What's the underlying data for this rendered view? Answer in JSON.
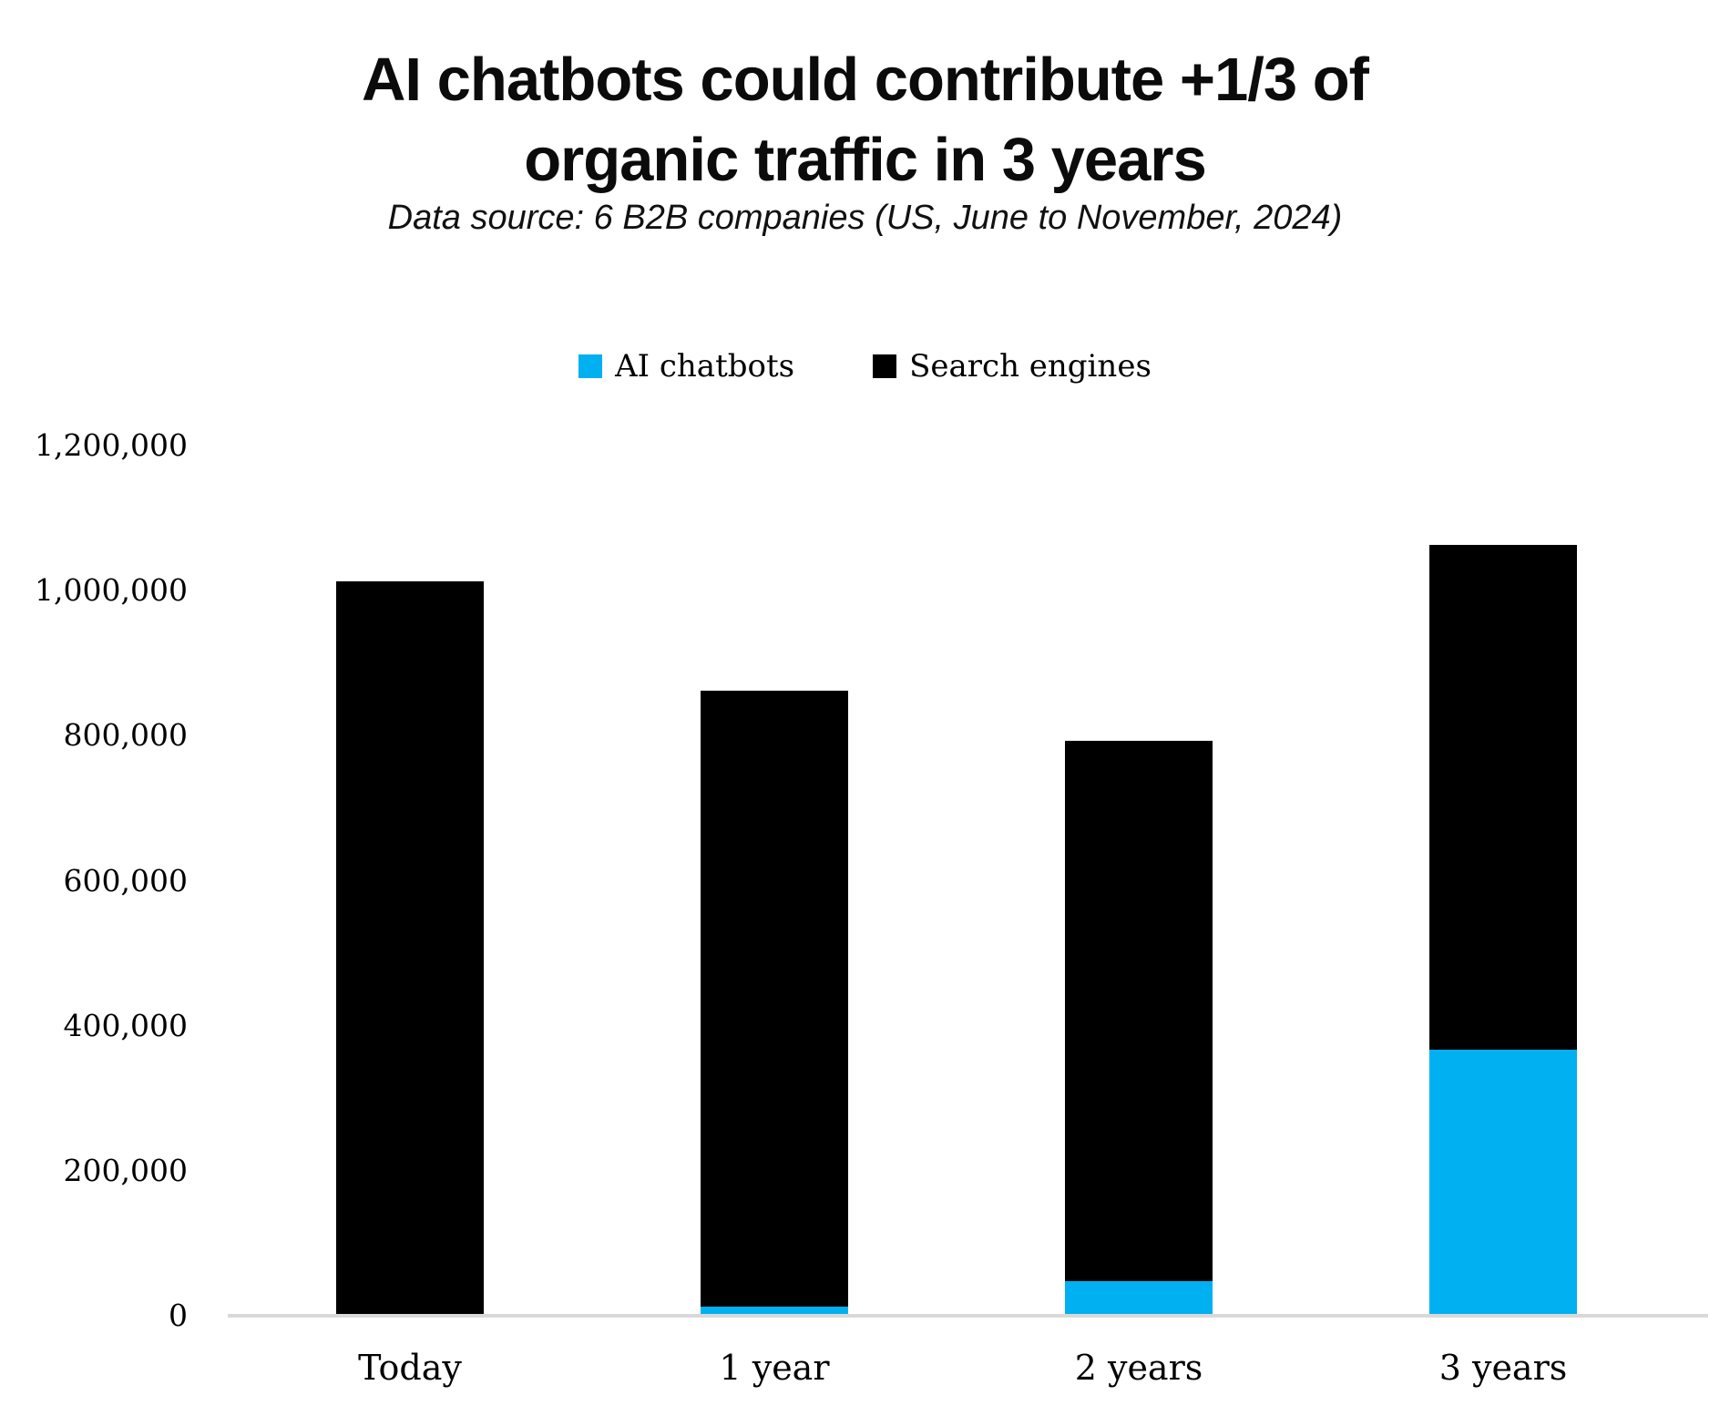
{
  "title": {
    "line1": "AI chatbots could contribute +1/3 of",
    "line2": "organic traffic in 3 years"
  },
  "subtitle": "Data source: 6 B2B companies (US, June to November, 2024)",
  "legend": {
    "items": [
      {
        "label": "AI chatbots",
        "color": "#00B0F0"
      },
      {
        "label": "Search engines",
        "color": "#000000"
      }
    ]
  },
  "colors": {
    "ai_chatbots": "#00B0F0",
    "search_engines": "#000000",
    "axis_line": "#D9D9D9",
    "text": "#000000"
  },
  "chart_data": {
    "type": "bar",
    "stacked": true,
    "title": "AI chatbots could contribute +1/3 of organic traffic in 3 years",
    "subtitle": "Data source: 6 B2B companies (US, June to November, 2024)",
    "categories": [
      "Today",
      "1 year",
      "2 years",
      "3 years"
    ],
    "series": [
      {
        "name": "AI chatbots",
        "color": "#00B0F0",
        "values": [
          0,
          10000,
          45000,
          365000
        ]
      },
      {
        "name": "Search engines",
        "color": "#000000",
        "values": [
          1010000,
          850000,
          745000,
          695000
        ]
      }
    ],
    "totals": [
      1010000,
      860000,
      790000,
      1060000
    ],
    "xlabel": "",
    "ylabel": "",
    "ylim": [
      0,
      1200000
    ],
    "ytick_step": 200000,
    "ytick_labels": [
      "0",
      "200,000",
      "400,000",
      "600,000",
      "800,000",
      "1,000,000",
      "1,200,000"
    ],
    "grid": false,
    "legend_position": "top"
  }
}
